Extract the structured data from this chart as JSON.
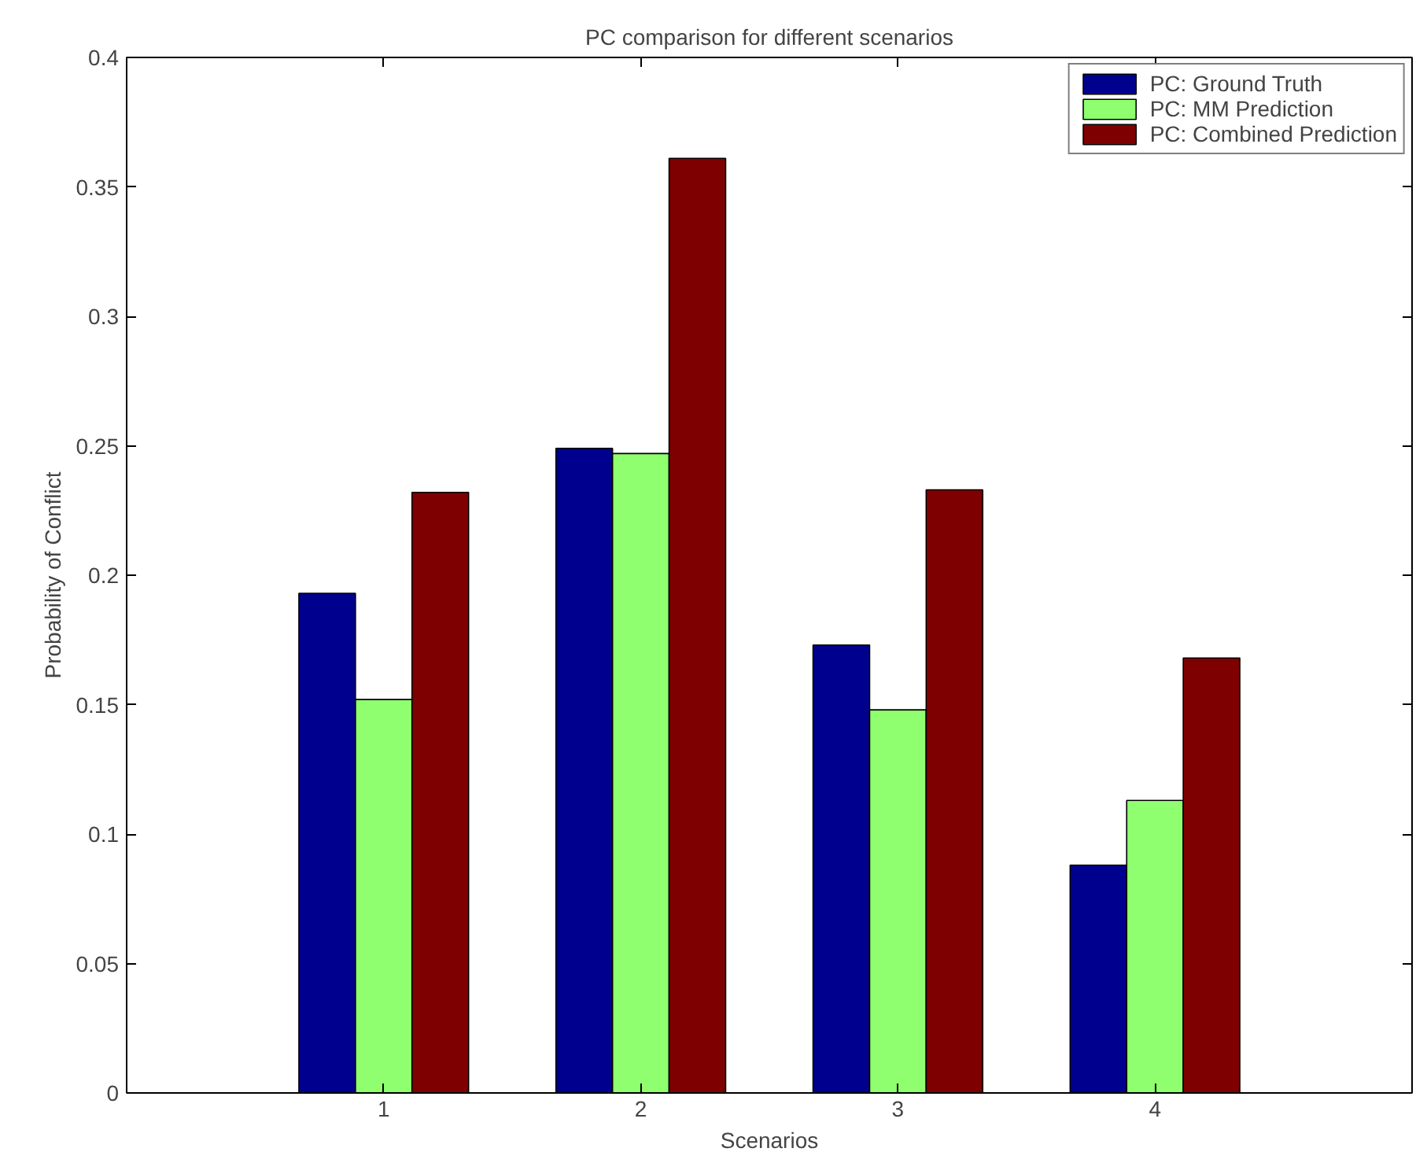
{
  "chart_data": {
    "type": "bar",
    "title": "PC comparison for different scenarios",
    "xlabel": "Scenarios",
    "ylabel": "Probability of Conflict",
    "categories": [
      "1",
      "2",
      "3",
      "4"
    ],
    "series": [
      {
        "name": "PC: Ground Truth",
        "color": "#00008f",
        "values": [
          0.193,
          0.249,
          0.173,
          0.088
        ]
      },
      {
        "name": "PC: MM Prediction",
        "color": "#8fff6f",
        "values": [
          0.152,
          0.247,
          0.148,
          0.113
        ]
      },
      {
        "name": "PC: Combined Prediction",
        "color": "#7f0000",
        "values": [
          0.232,
          0.361,
          0.233,
          0.168
        ]
      }
    ],
    "ylim": [
      0,
      0.4
    ],
    "yticks": [
      0,
      0.05,
      0.1,
      0.15,
      0.2,
      0.25,
      0.3,
      0.35,
      0.4
    ],
    "grid": false,
    "legend": "top right"
  }
}
